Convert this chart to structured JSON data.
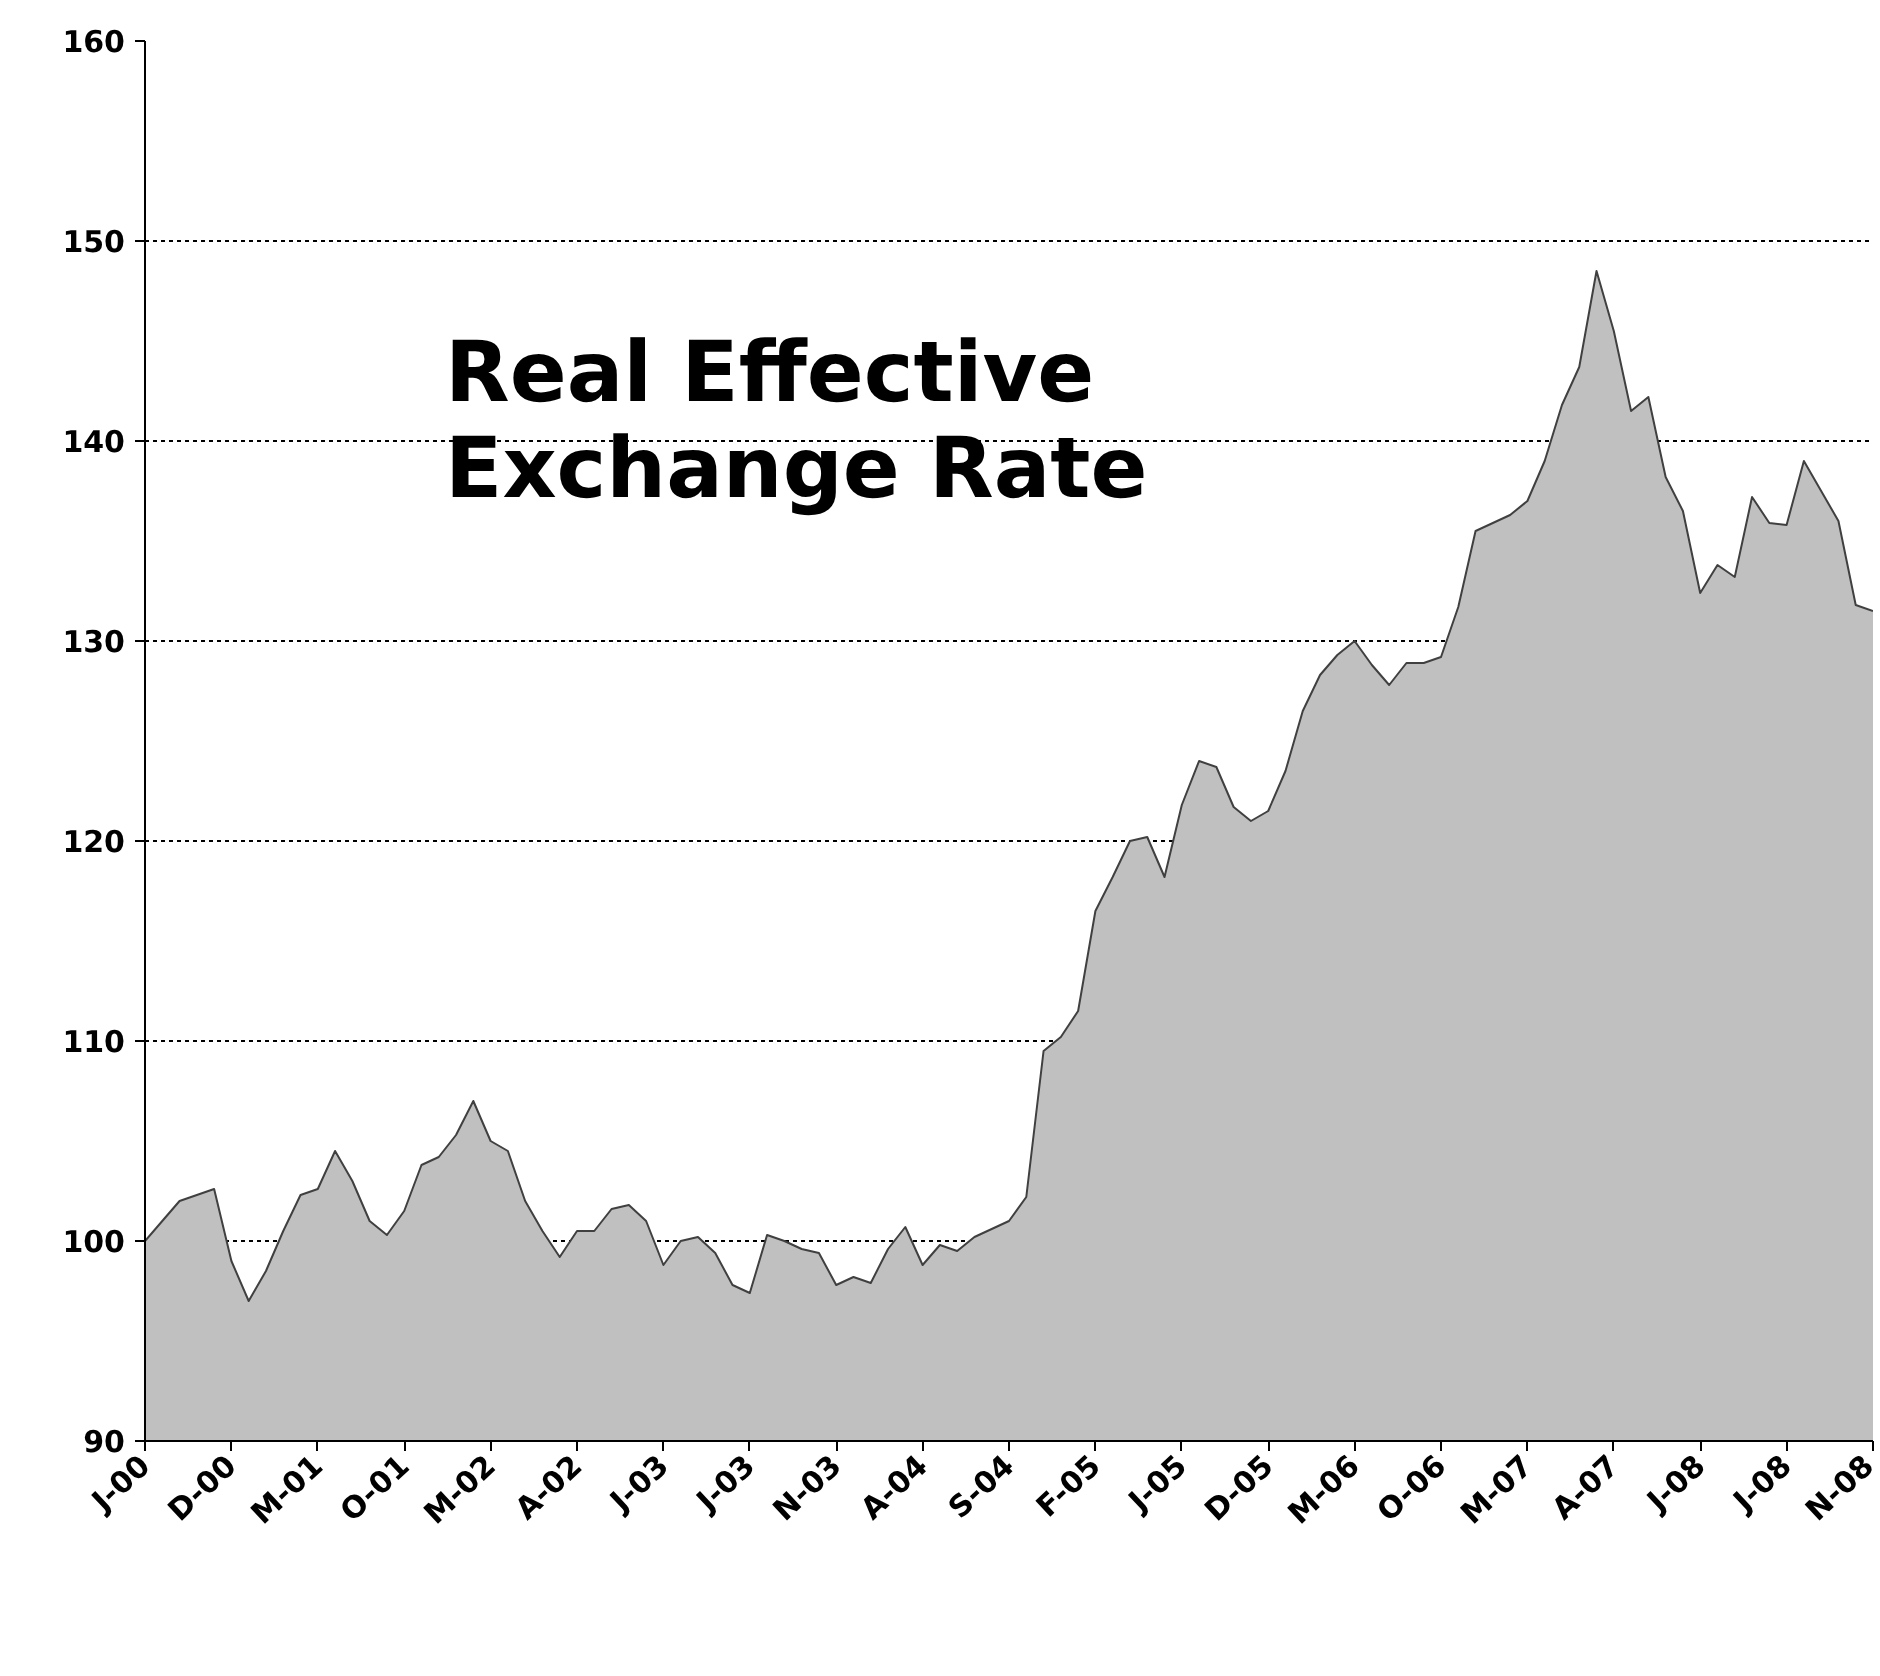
{
  "chart_data": {
    "type": "area",
    "title": "Real Effective Exchange Rate",
    "categories": [
      "J-00",
      null,
      null,
      null,
      null,
      "D-00",
      null,
      null,
      null,
      null,
      "M-01",
      null,
      null,
      null,
      null,
      "O-01",
      null,
      null,
      null,
      null,
      "M-02",
      null,
      null,
      null,
      null,
      "A-02",
      null,
      null,
      null,
      null,
      "J-03",
      null,
      null,
      null,
      null,
      "J-03",
      null,
      null,
      null,
      null,
      "N-03",
      null,
      null,
      null,
      null,
      "A-04",
      null,
      null,
      null,
      null,
      "S-04",
      null,
      null,
      null,
      null,
      "F-05",
      null,
      null,
      null,
      null,
      "J-05",
      null,
      null,
      null,
      null,
      "D-05",
      null,
      null,
      null,
      null,
      "M-06",
      null,
      null,
      null,
      null,
      "O-06",
      null,
      null,
      null,
      null,
      "M-07",
      null,
      null,
      null,
      null,
      "A-07",
      null,
      null,
      null,
      null,
      "J-08",
      null,
      null,
      null,
      null,
      "J-08",
      null,
      null,
      null,
      null,
      "N-08"
    ],
    "series": [
      {
        "color": "#c0c0c0",
        "values": [
          100,
          101,
          102,
          102.3,
          102.6,
          99,
          97,
          98.5,
          100.5,
          102.3,
          102.6,
          104.5,
          103,
          101,
          100.3,
          101.5,
          103.8,
          104.2,
          105.3,
          107,
          105,
          104.5,
          102,
          100.5,
          99.2,
          100.5,
          100.5,
          101.6,
          101.8,
          101,
          98.8,
          100,
          100.2,
          99.4,
          97.8,
          97.4,
          100.3,
          100,
          99.6,
          99.4,
          97.8,
          98.2,
          97.9,
          99.6,
          100.7,
          98.8,
          99.8,
          99.5,
          100.2,
          100.6,
          101,
          102.2,
          109.5,
          110.2,
          111.5,
          116.5,
          118.2,
          120,
          120.2,
          118.2,
          121.8,
          124,
          123.7,
          121.7,
          121,
          121.5,
          123.5,
          126.5,
          128.3,
          129.3,
          130,
          128.8,
          127.8,
          128.9,
          128.9,
          129.2,
          131.7,
          135.5,
          135.9,
          136.3,
          137,
          139,
          141.8,
          143.7,
          148.5,
          145.5,
          141.5,
          142.2,
          138.2,
          136.5,
          132.4,
          133.8,
          133.2,
          137.2,
          135.9,
          135.8,
          139,
          137.5,
          136,
          131.8,
          131.5
        ]
      }
    ],
    "ylim": [
      90,
      160
    ],
    "yticks": [
      90,
      100,
      110,
      120,
      130,
      140,
      150,
      160
    ],
    "grid": "y"
  }
}
